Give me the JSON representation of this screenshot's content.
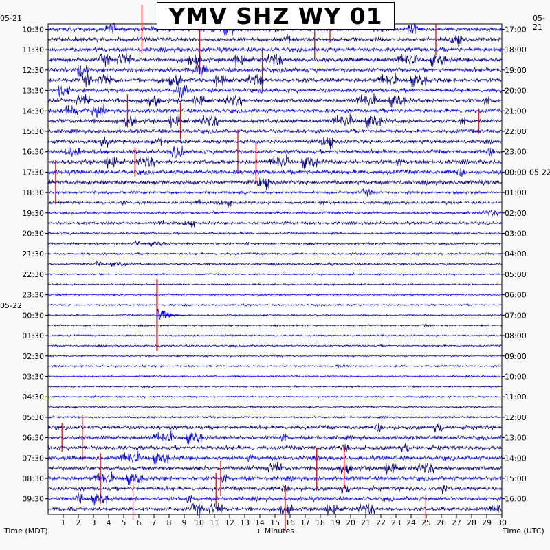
{
  "chart_data": {
    "type": "line",
    "title": "YMV SHZ WY 01",
    "xlabel": "+ Minutes",
    "left_axis_label": "Time (MDT)",
    "right_axis_label": "Time (UTC)",
    "x_ticks": [
      "1",
      "2",
      "3",
      "4",
      "5",
      "6",
      "7",
      "8",
      "9",
      "10",
      "11",
      "12",
      "13",
      "14",
      "15",
      "16",
      "17",
      "18",
      "19",
      "20",
      "21",
      "22",
      "23",
      "24",
      "25",
      "26",
      "27",
      "28",
      "29",
      "30"
    ],
    "xlim": [
      0,
      30
    ],
    "left_date_top": "05-21",
    "left_date_mid": "05-22",
    "right_date_top": "05-21",
    "right_date_mid": "05-22",
    "left_ticks": [
      "10:30",
      "11:30",
      "12:30",
      "13:30",
      "14:30",
      "15:30",
      "16:30",
      "17:30",
      "18:30",
      "19:30",
      "20:30",
      "21:30",
      "22:30",
      "23:30",
      "00:30",
      "01:30",
      "02:30",
      "03:30",
      "04:30",
      "05:30",
      "06:30",
      "07:30",
      "08:30",
      "09:30"
    ],
    "right_ticks": [
      "17:00",
      "18:00",
      "19:00",
      "20:00",
      "21:00",
      "22:00",
      "23:00",
      "00:00",
      "01:00",
      "02:00",
      "03:00",
      "04:00",
      "05:00",
      "06:00",
      "07:00",
      "08:00",
      "09:00",
      "10:00",
      "11:00",
      "12:00",
      "13:00",
      "14:00",
      "15:00",
      "16:00"
    ],
    "trace_rows": 48,
    "minutes_per_row": 30,
    "trace_colors": [
      "#0000ff",
      "#000080"
    ],
    "clip_color": "#ff0000",
    "grid": true,
    "events": [
      {
        "row": 28,
        "minute": 7.2,
        "label": "large event near 23:30 MDT"
      }
    ]
  }
}
